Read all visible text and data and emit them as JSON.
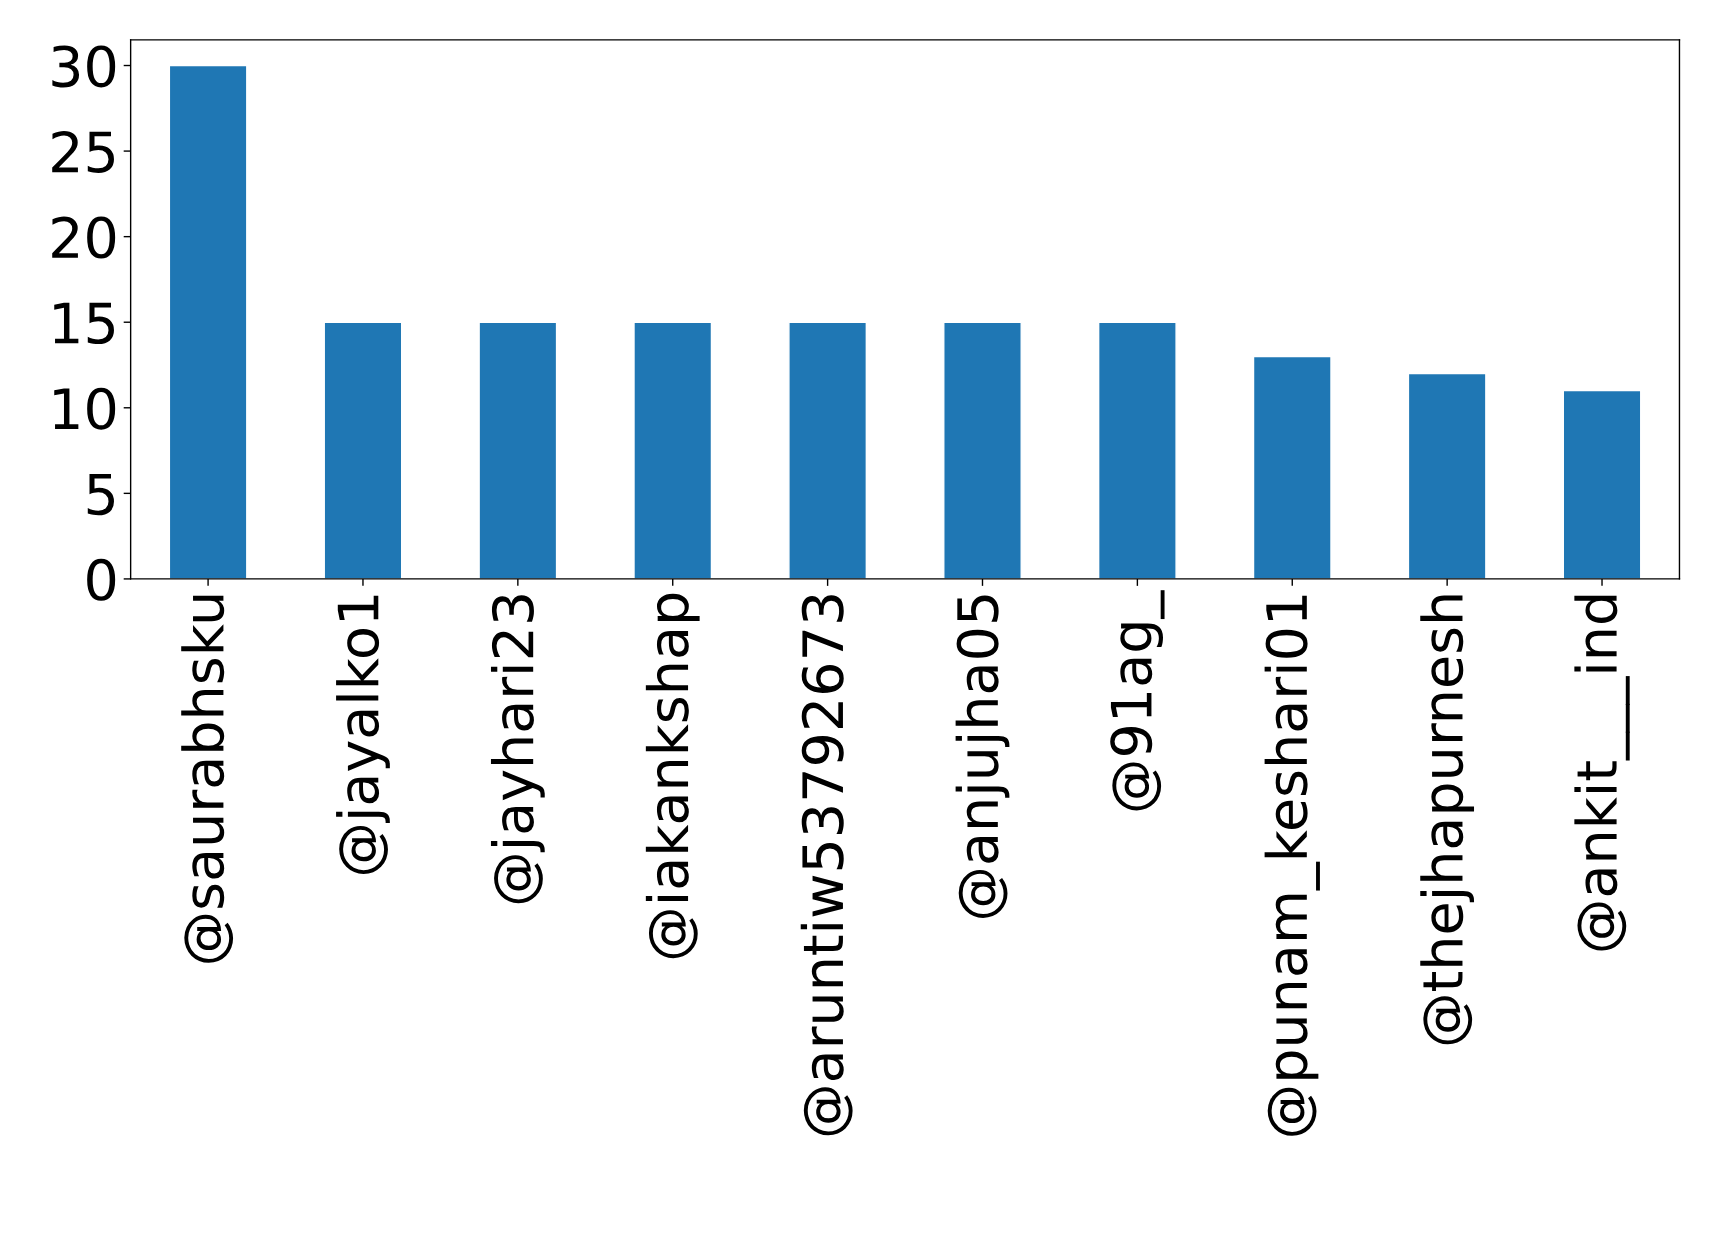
{
  "chart_data": {
    "type": "bar",
    "categories": [
      "@saurabhsku",
      "@jayalko1",
      "@jayhari23",
      "@iakankshap",
      "@aruntiw53792673",
      "@anjujha05",
      "@91ag_",
      "@punam_keshari01",
      "@thejhapurnesh",
      "@ankit___ind"
    ],
    "values": [
      30,
      15,
      15,
      15,
      15,
      15,
      15,
      13,
      12,
      11
    ],
    "color": "#1f77b4",
    "ylim": [
      0,
      31.5
    ],
    "yticks": [
      0,
      5,
      10,
      15,
      20,
      25,
      30
    ],
    "grid": false
  }
}
